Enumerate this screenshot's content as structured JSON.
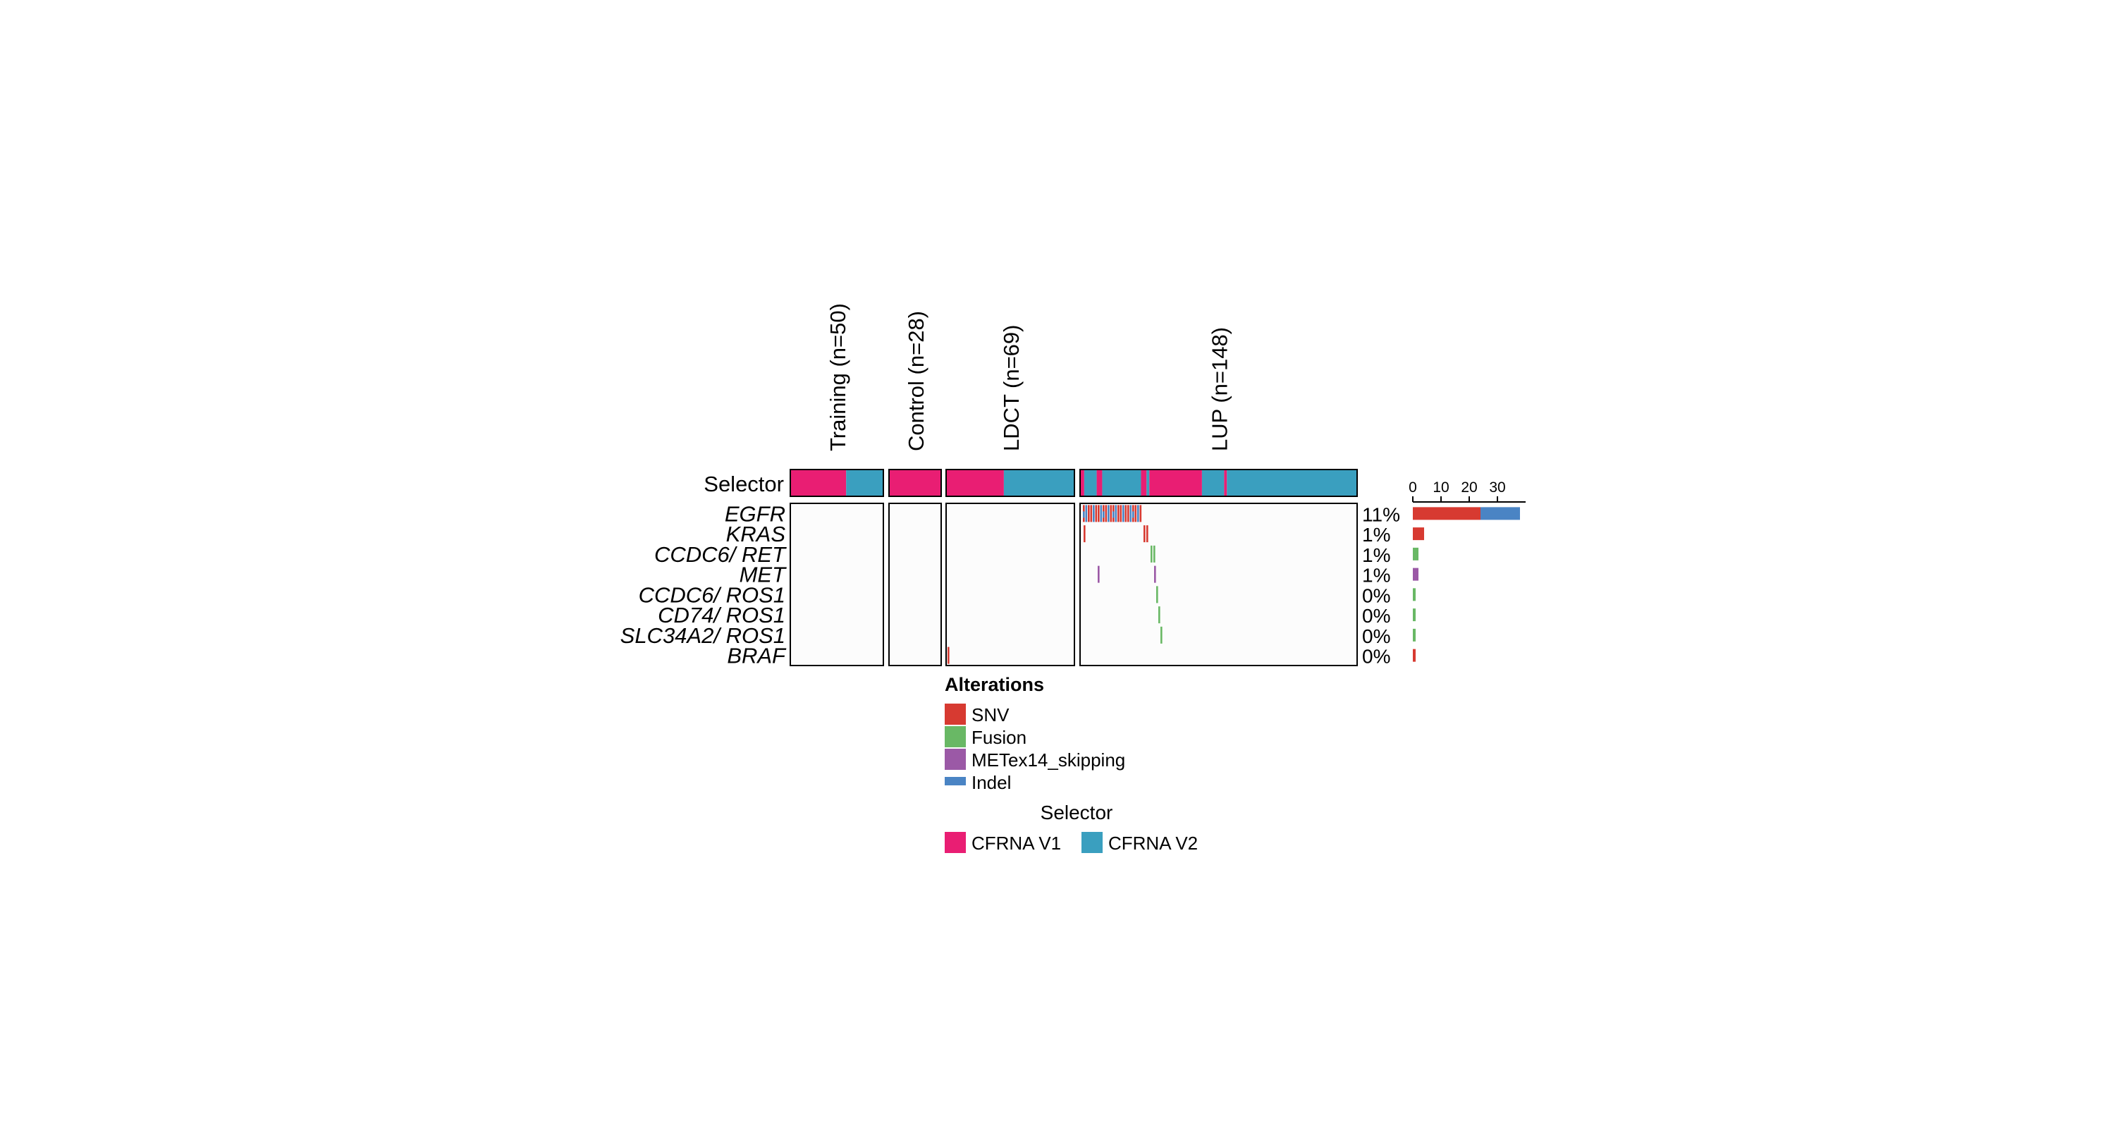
{
  "colors": {
    "snv": "#d73a31",
    "fusion": "#69b865",
    "metex14": "#9b59a6",
    "indel": "#4a84c4",
    "cfrna_v1": "#e91e73",
    "cfrna_v2": "#3a9fbf",
    "panel_bg": "#fcfcfc"
  },
  "chart_data": {
    "type": "oncoprint",
    "cohorts": [
      {
        "name": "Training (n=50)",
        "n": 50,
        "selector_split": [
          {
            "selector": "CFRNA V1",
            "fraction": 0.6
          },
          {
            "selector": "CFRNA V2",
            "fraction": 0.4
          }
        ]
      },
      {
        "name": "Control (n=28)",
        "n": 28,
        "selector_split": [
          {
            "selector": "CFRNA V1",
            "fraction": 1.0
          }
        ]
      },
      {
        "name": "LDCT (n=69)",
        "n": 69,
        "selector_split": [
          {
            "selector": "CFRNA V1",
            "fraction": 0.45
          },
          {
            "selector": "CFRNA V2",
            "fraction": 0.55
          }
        ]
      },
      {
        "name": "LUP (n=148)",
        "n": 148
      }
    ],
    "selector_row_label": "Selector",
    "genes": [
      {
        "name": "EGFR",
        "percent": "11%",
        "counts": {
          "SNV": 24,
          "Indel": 14
        }
      },
      {
        "name": "KRAS",
        "percent": "1%",
        "counts": {
          "SNV": 4
        }
      },
      {
        "name": "CCDC6/ RET",
        "percent": "1%",
        "counts": {
          "Fusion": 2
        }
      },
      {
        "name": "MET",
        "percent": "1%",
        "counts": {
          "METex14_skipping": 2
        }
      },
      {
        "name": "CCDC6/ ROS1",
        "percent": "0%",
        "counts": {
          "Fusion": 1
        }
      },
      {
        "name": "CD74/ ROS1",
        "percent": "0%",
        "counts": {
          "Fusion": 1
        }
      },
      {
        "name": "SLC34A2/ ROS1",
        "percent": "0%",
        "counts": {
          "Fusion": 1
        }
      },
      {
        "name": "BRAF",
        "percent": "0%",
        "counts": {
          "SNV": 1
        }
      }
    ],
    "bar_axis": {
      "ticks": [
        0,
        10,
        20,
        30
      ],
      "xlim": [
        0,
        40
      ]
    },
    "legend_alterations": {
      "title": "Alterations",
      "items": [
        {
          "label": "SNV",
          "key": "snv"
        },
        {
          "label": "Fusion",
          "key": "fusion"
        },
        {
          "label": "METex14_skipping",
          "key": "metex14"
        },
        {
          "label": "Indel",
          "key": "indel"
        }
      ]
    },
    "legend_selector": {
      "title": "Selector",
      "items": [
        {
          "label": "CFRNA V1",
          "key": "cfrna_v1"
        },
        {
          "label": "CFRNA V2",
          "key": "cfrna_v2"
        }
      ]
    }
  }
}
